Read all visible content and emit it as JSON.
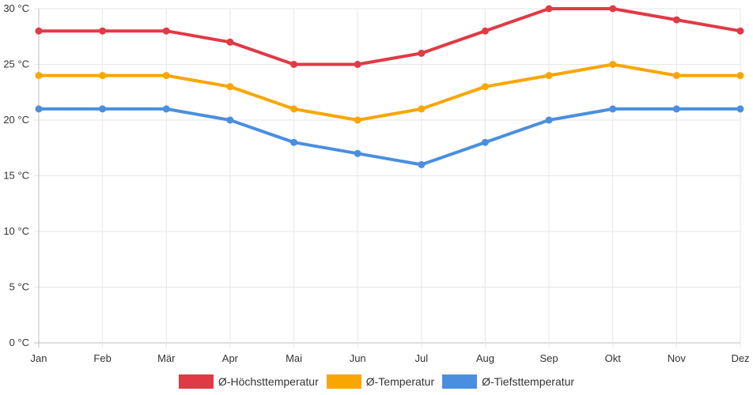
{
  "chart_data": {
    "type": "line",
    "categories": [
      "Jan",
      "Feb",
      "Mär",
      "Apr",
      "Mai",
      "Jun",
      "Jul",
      "Aug",
      "Sep",
      "Okt",
      "Nov",
      "Dez"
    ],
    "series": [
      {
        "name": "Ø-Höchsttemperatur",
        "color": "#e03a45",
        "values": [
          28,
          28,
          28,
          27,
          25,
          25,
          26,
          28,
          30,
          30,
          29,
          28
        ]
      },
      {
        "name": "Ø-Temperatur",
        "color": "#f9a602",
        "values": [
          24,
          24,
          24,
          23,
          21,
          20,
          21,
          23,
          24,
          25,
          24,
          24
        ]
      },
      {
        "name": "Ø-Tiefsttemperatur",
        "color": "#4a8fdf",
        "values": [
          21,
          21,
          21,
          20,
          18,
          17,
          16,
          18,
          20,
          21,
          21,
          21
        ]
      }
    ],
    "y_ticks": [
      "0 °C",
      "5 °C",
      "10 °C",
      "15 °C",
      "20 °C",
      "25 °C",
      "30 °C"
    ],
    "ylim": [
      0,
      30
    ],
    "y_step": 5,
    "title": "",
    "xlabel": "",
    "ylabel": "",
    "grid": true,
    "legend_position": "bottom-center"
  }
}
